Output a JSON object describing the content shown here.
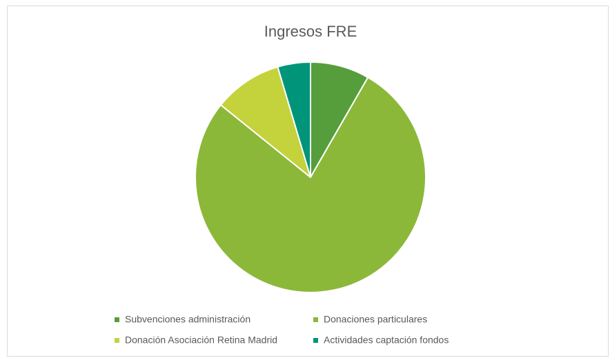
{
  "chart_data": {
    "type": "pie",
    "title": "Ingresos FRE",
    "categories": [
      "Subvenciones administración",
      "Donaciones particulares",
      "Donación Asociación Retina Madrid",
      "Actividades captación fondos"
    ],
    "values": [
      8.3,
      77.5,
      9.6,
      4.6
    ],
    "colors": [
      "#559e3b",
      "#8cb83a",
      "#c4d23c",
      "#00957a"
    ],
    "legend": "bottom"
  }
}
